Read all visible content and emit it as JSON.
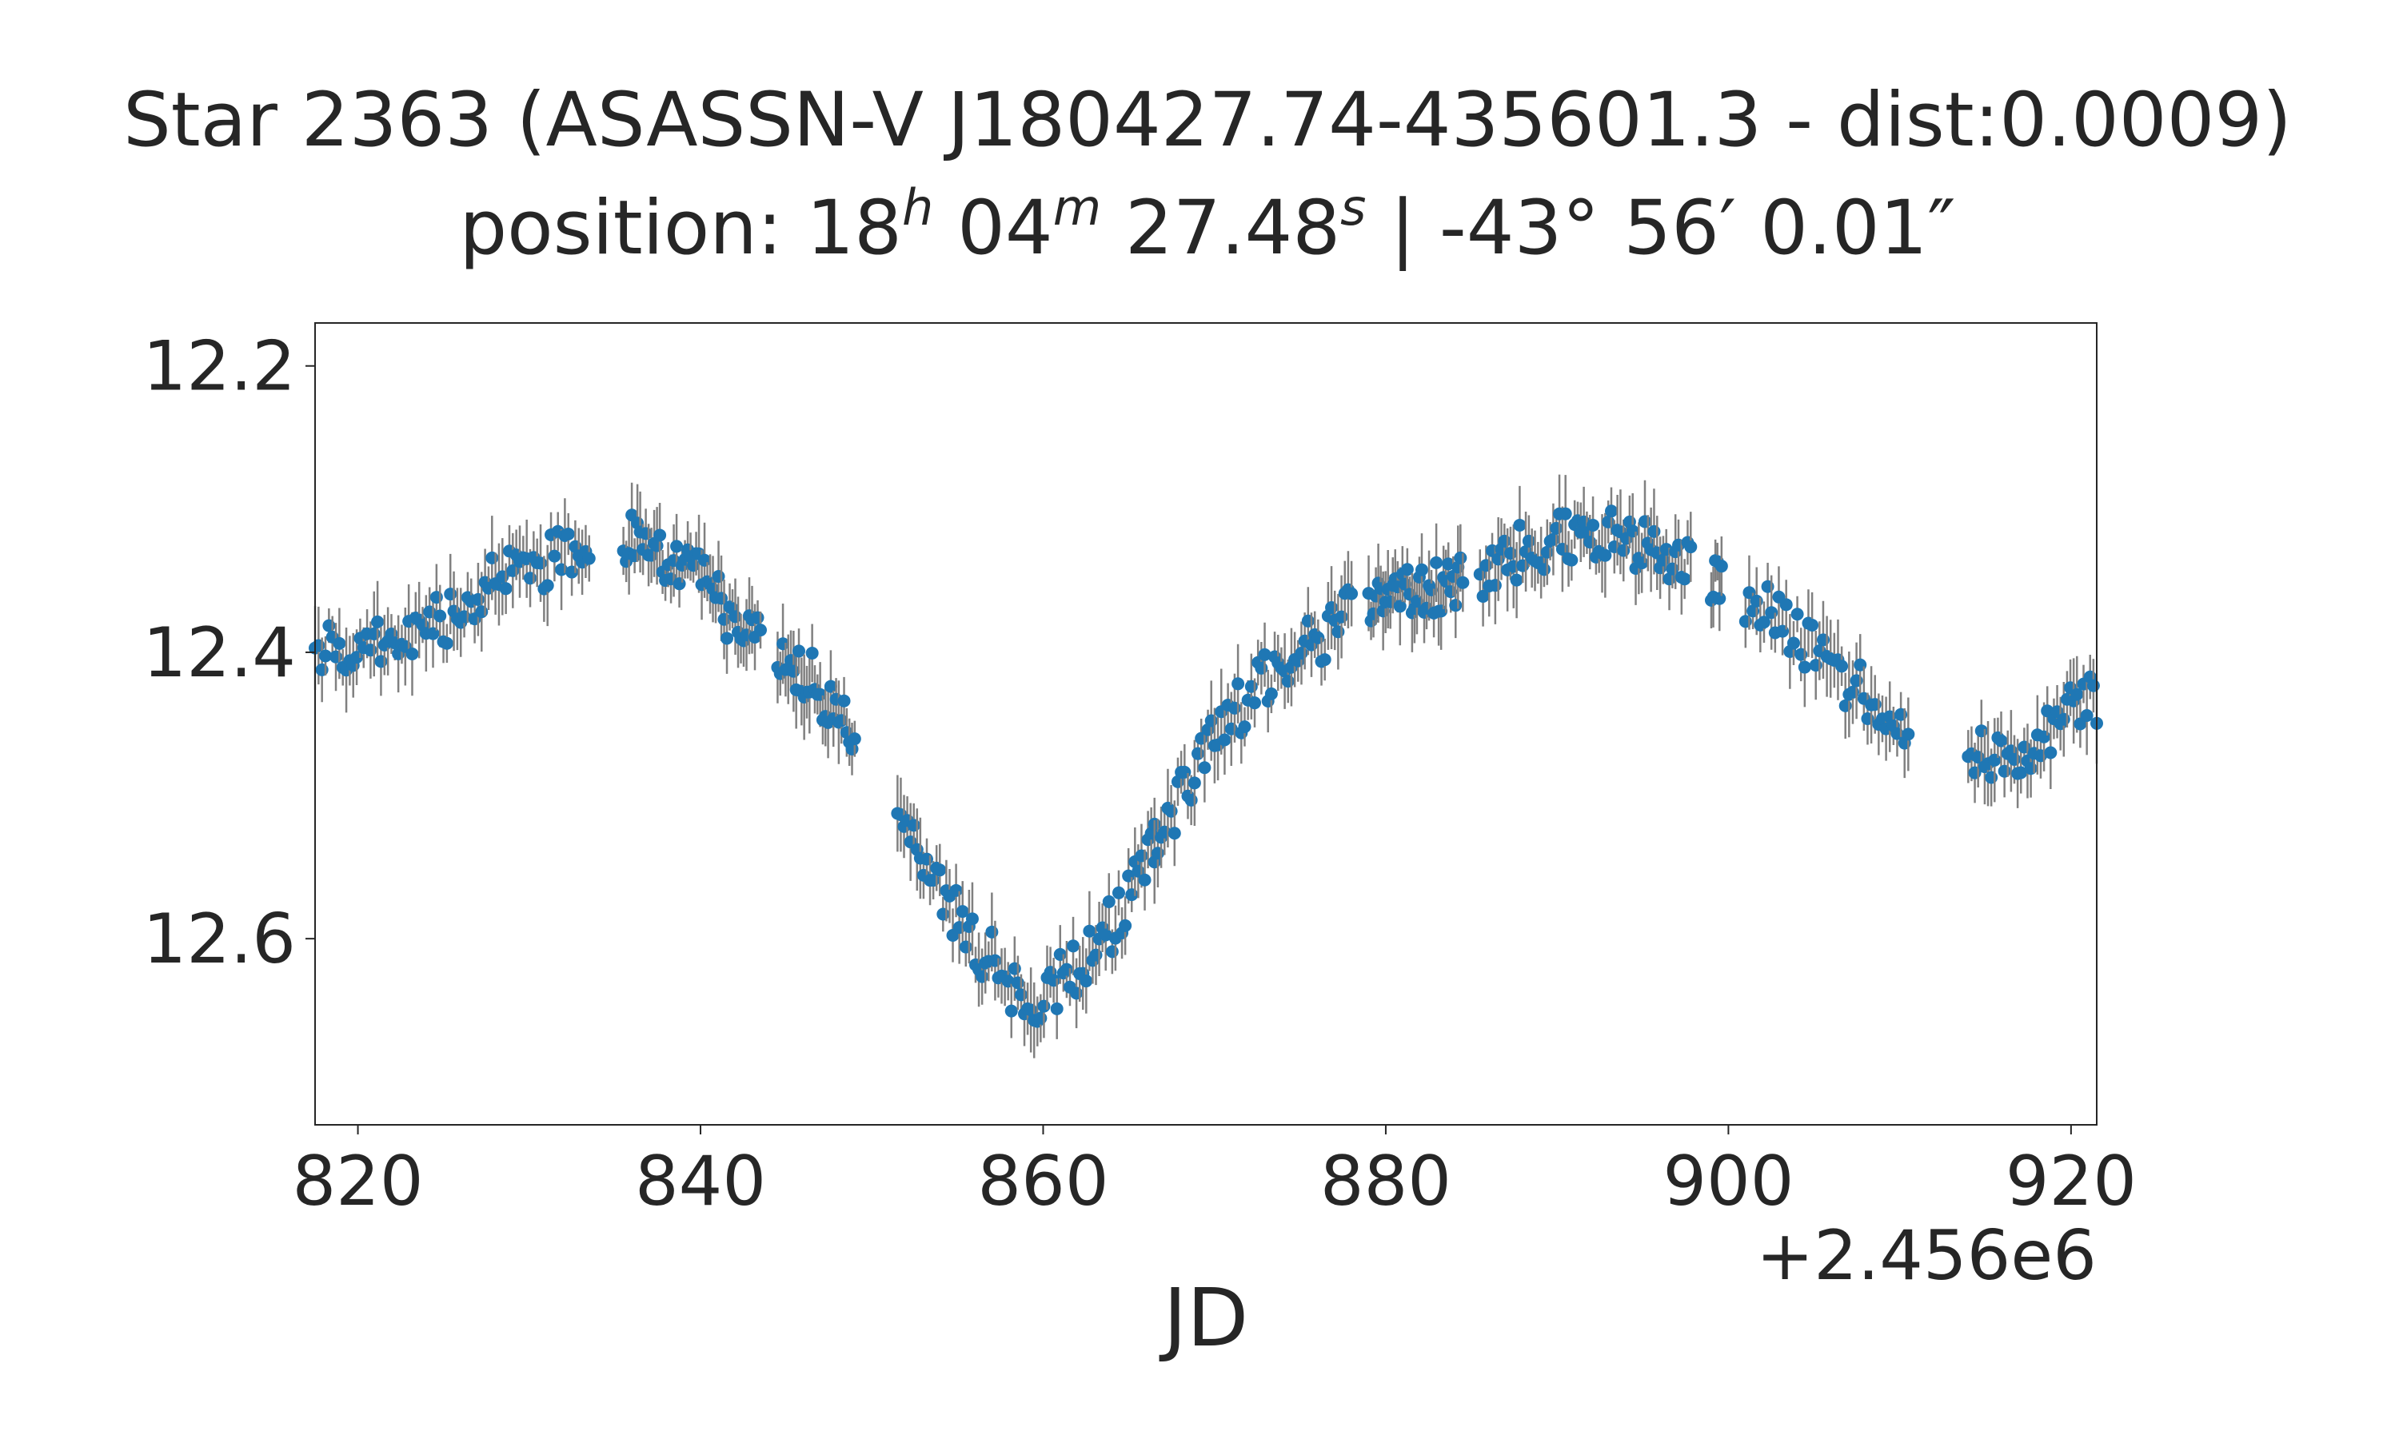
{
  "chart_data": {
    "type": "scatter",
    "title": "Star 2363 (ASASSN-V J180427.74-435601.3 - dist:0.0009)",
    "subtitle": {
      "prefix": "position: 18",
      "h": "h",
      "m_val": " 04",
      "m": "m",
      "s_val": " 27.48",
      "s": "s",
      "dec": " | -43° 56′ 0.01″"
    },
    "xlabel": "JD",
    "ylabel": "",
    "x_offset_label": "+2.456e6",
    "xlim": [
      817.5,
      921.5
    ],
    "ylim": [
      12.73,
      12.17
    ],
    "y_inverted": true,
    "xticks": [
      820,
      840,
      860,
      880,
      900,
      920
    ],
    "xtick_labels": [
      "820",
      "840",
      "860",
      "880",
      "900",
      "920"
    ],
    "yticks": [
      12.2,
      12.4,
      12.6
    ],
    "ytick_labels": [
      "12.2",
      "12.4",
      "12.6"
    ],
    "marker_color": "#1f77b4",
    "errorbar_color": "#808080",
    "observations": [
      {
        "x": 818,
        "y": 12.4
      },
      {
        "x": 820,
        "y": 12.4
      },
      {
        "x": 822,
        "y": 12.39
      },
      {
        "x": 824,
        "y": 12.38
      },
      {
        "x": 826,
        "y": 12.37
      },
      {
        "x": 828,
        "y": 12.35
      },
      {
        "x": 830,
        "y": 12.34
      },
      {
        "x": 832.5,
        "y": 12.33
      },
      {
        "x": 836,
        "y": 12.32
      },
      {
        "x": 838,
        "y": 12.34
      },
      {
        "x": 840,
        "y": 12.35
      },
      {
        "x": 842,
        "y": 12.38
      },
      {
        "x": 844.5,
        "y": 12.4
      },
      {
        "x": 846.5,
        "y": 12.42
      },
      {
        "x": 848.5,
        "y": 12.45
      },
      {
        "x": 852,
        "y": 12.52
      },
      {
        "x": 854,
        "y": 12.57
      },
      {
        "x": 856,
        "y": 12.6
      },
      {
        "x": 858,
        "y": 12.63
      },
      {
        "x": 860,
        "y": 12.64
      },
      {
        "x": 862,
        "y": 12.62
      },
      {
        "x": 864,
        "y": 12.59
      },
      {
        "x": 866,
        "y": 12.55
      },
      {
        "x": 868,
        "y": 12.5
      },
      {
        "x": 870,
        "y": 12.46
      },
      {
        "x": 872,
        "y": 12.43
      },
      {
        "x": 874,
        "y": 12.41
      },
      {
        "x": 876,
        "y": 12.39
      },
      {
        "x": 878,
        "y": 12.37
      },
      {
        "x": 880,
        "y": 12.36
      },
      {
        "x": 882,
        "y": 12.36
      },
      {
        "x": 884,
        "y": 12.35
      },
      {
        "x": 886,
        "y": 12.34
      },
      {
        "x": 888,
        "y": 12.33
      },
      {
        "x": 890,
        "y": 12.32
      },
      {
        "x": 892,
        "y": 12.32
      },
      {
        "x": 894,
        "y": 12.32
      },
      {
        "x": 896,
        "y": 12.33
      },
      {
        "x": 898,
        "y": 12.34
      },
      {
        "x": 900,
        "y": 12.35
      },
      {
        "x": 902,
        "y": 12.37
      },
      {
        "x": 904,
        "y": 12.39
      },
      {
        "x": 906,
        "y": 12.41
      },
      {
        "x": 908,
        "y": 12.43
      },
      {
        "x": 910,
        "y": 12.45
      },
      {
        "x": 914,
        "y": 12.47
      },
      {
        "x": 916,
        "y": 12.47
      },
      {
        "x": 918,
        "y": 12.46
      },
      {
        "x": 920,
        "y": 12.44
      },
      {
        "x": 921.5,
        "y": 12.43
      }
    ],
    "segments": [
      {
        "x0": 817.5,
        "x1": 833.5,
        "n": 80
      },
      {
        "x0": 835.5,
        "x1": 843.5,
        "n": 50
      },
      {
        "x0": 844.5,
        "x1": 849.0,
        "n": 30
      },
      {
        "x0": 851.5,
        "x1": 866.5,
        "n": 80
      },
      {
        "x0": 866.5,
        "x1": 878.0,
        "n": 60
      },
      {
        "x0": 879.0,
        "x1": 884.5,
        "n": 40
      },
      {
        "x0": 885.5,
        "x1": 897.8,
        "n": 70
      },
      {
        "x0": 899.0,
        "x1": 899.6,
        "n": 6
      },
      {
        "x0": 901.0,
        "x1": 910.5,
        "n": 45
      },
      {
        "x0": 914.0,
        "x1": 921.5,
        "n": 40
      }
    ]
  }
}
